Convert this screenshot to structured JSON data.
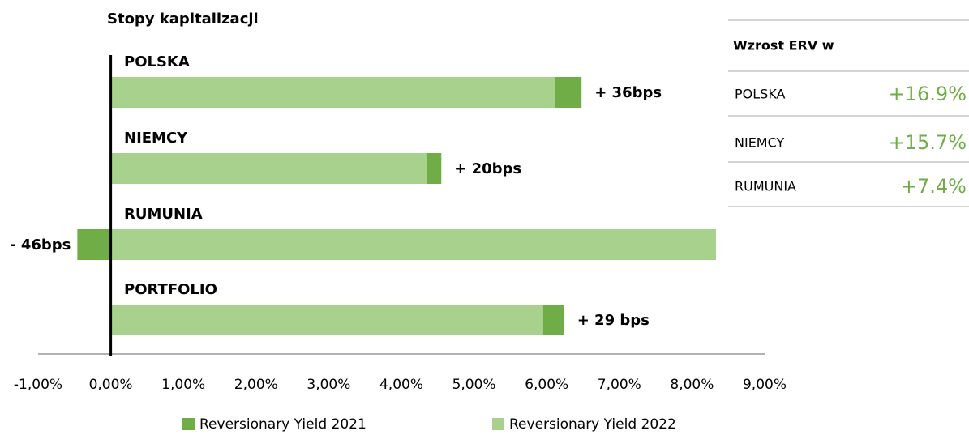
{
  "chart_data": {
    "type": "bar",
    "orientation": "horizontal",
    "stacked": true,
    "title": "Stopy kapitalizacji",
    "categories": [
      "POLSKA",
      "NIEMCY",
      "RUMUNIA",
      "PORTFOLIO"
    ],
    "series": [
      {
        "name": "Reversionary Yield 2021",
        "color": "#70ad47",
        "values": [
          0.36,
          0.2,
          -0.46,
          0.29
        ],
        "value_labels": [
          "+ 36bps",
          "+ 20bps",
          "- 46bps",
          "+ 29 bps"
        ]
      },
      {
        "name": "Reversionary Yield 2022",
        "color": "#a9d18e",
        "values": [
          6.12,
          4.35,
          8.33,
          5.95
        ]
      }
    ],
    "xlim": [
      -1,
      9
    ],
    "xticks": [
      {
        "value": -1,
        "label": "-1,00%"
      },
      {
        "value": 0,
        "label": "0,00%"
      },
      {
        "value": 1,
        "label": "1,00%"
      },
      {
        "value": 2,
        "label": "2,00%"
      },
      {
        "value": 3,
        "label": "3,00%"
      },
      {
        "value": 4,
        "label": "4,00%"
      },
      {
        "value": 5,
        "label": "5,00%"
      },
      {
        "value": 6,
        "label": "6,00%"
      },
      {
        "value": 7,
        "label": "7,00%"
      },
      {
        "value": 8,
        "label": "8,00%"
      },
      {
        "value": 9,
        "label": "9,00%"
      }
    ],
    "legend": "bottom"
  },
  "table": {
    "title": "Wzrost ERV w",
    "rows": [
      [
        "POLSKA",
        "+16.9%"
      ],
      [
        "NIEMCY",
        "+15.7%"
      ],
      [
        "RUMUNIA",
        "+7.4%"
      ]
    ]
  }
}
